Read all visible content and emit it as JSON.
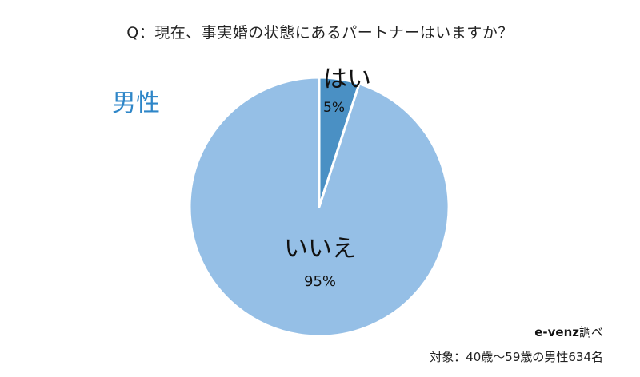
{
  "chart_data": {
    "type": "pie",
    "title": "Q：現在、事実婚の状態にあるパートナーはいますか？",
    "subtitle": "男性",
    "categories": [
      "はい",
      "いいえ"
    ],
    "values": [
      5,
      95
    ],
    "value_labels": [
      "5%",
      "95%"
    ],
    "colors": [
      "#4A90C4",
      "#95BFE6"
    ],
    "start_angle": "12 o'clock",
    "direction": "clockwise"
  },
  "source": {
    "brand": "e-venz",
    "suffix": "調べ"
  },
  "note": "対象：40歳〜59歳の男性634名"
}
